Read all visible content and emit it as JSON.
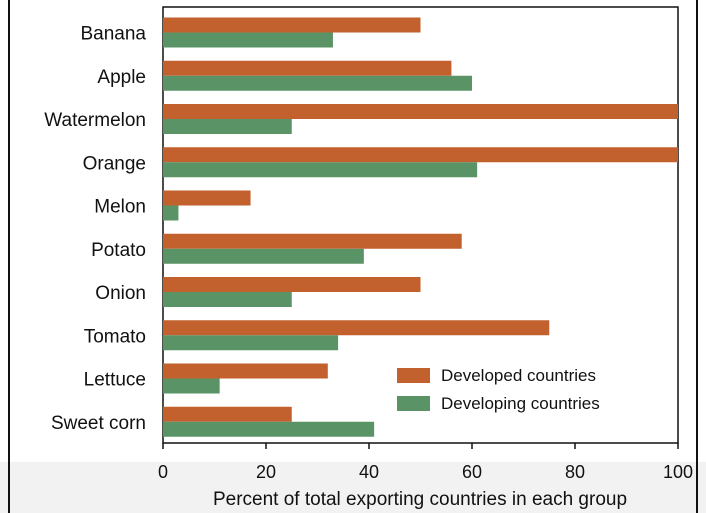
{
  "chart_data": {
    "type": "bar",
    "orientation": "horizontal",
    "categories": [
      "Banana",
      "Apple",
      "Watermelon",
      "Orange",
      "Melon",
      "Potato",
      "Onion",
      "Tomato",
      "Lettuce",
      "Sweet corn"
    ],
    "series": [
      {
        "name": "Developed countries",
        "color": "#c2602e",
        "values": [
          50,
          56,
          100,
          100,
          17,
          58,
          50,
          75,
          32,
          25
        ]
      },
      {
        "name": "Developing countries",
        "color": "#5a9466",
        "values": [
          33,
          60,
          25,
          61,
          3,
          39,
          25,
          34,
          11,
          41
        ]
      }
    ],
    "xlabel": "Percent of total exporting countries in each group",
    "xlim": [
      0,
      100
    ],
    "xticks": [
      0,
      20,
      40,
      60,
      80,
      100
    ],
    "legend_position": "bottom-right inside plot",
    "grid": false
  }
}
